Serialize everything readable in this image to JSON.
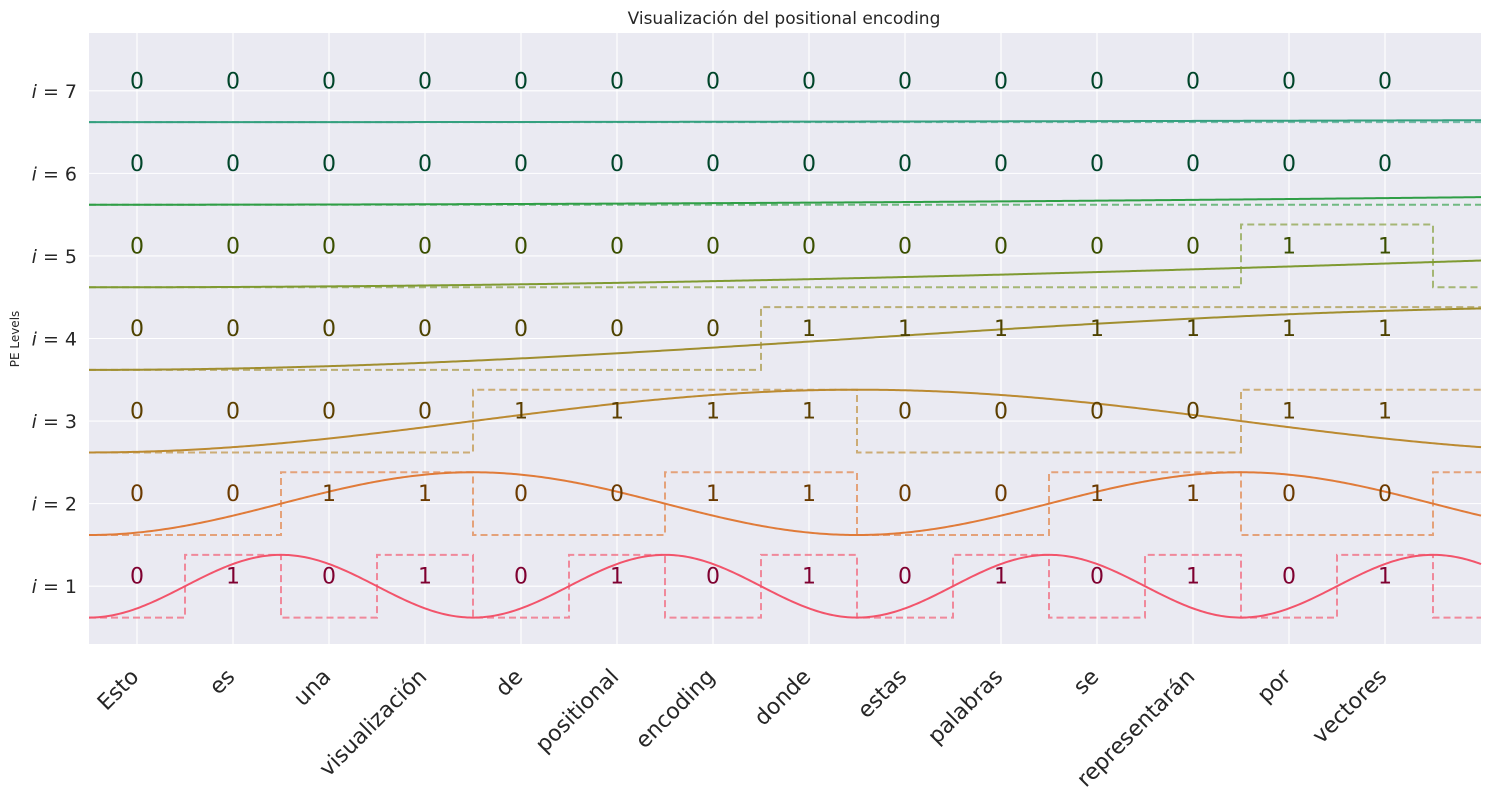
{
  "chart_data": {
    "type": "line",
    "title": "Visualización del positional encoding",
    "xlabel": "",
    "ylabel": "PE Levels",
    "ytick_prefix": "i = ",
    "levels": [
      1,
      2,
      3,
      4,
      5,
      6,
      7
    ],
    "tokens": [
      "Esto",
      "es",
      "una",
      "visualización",
      "de",
      "positional",
      "encoding",
      "donde",
      "estas",
      "palabras",
      "se",
      "representarán",
      "por",
      "vectores"
    ],
    "x_range": [
      -0.5,
      14.0
    ],
    "y_range": [
      0.3,
      7.7
    ],
    "grid": true,
    "series": [
      {
        "level": 1,
        "color": "#f2546b",
        "text_color": "#7f0030",
        "bits": [
          0,
          1,
          0,
          1,
          0,
          1,
          0,
          1,
          0,
          1,
          0,
          1,
          0,
          1
        ]
      },
      {
        "level": 2,
        "color": "#e07b39",
        "text_color": "#6b3a00",
        "bits": [
          0,
          0,
          1,
          1,
          0,
          0,
          1,
          1,
          0,
          0,
          1,
          1,
          0,
          0
        ]
      },
      {
        "level": 3,
        "color": "#bb8a31",
        "text_color": "#5c3f00",
        "bits": [
          0,
          0,
          0,
          0,
          1,
          1,
          1,
          1,
          0,
          0,
          0,
          0,
          1,
          1
        ]
      },
      {
        "level": 4,
        "color": "#a08e2f",
        "text_color": "#4d4200",
        "bits": [
          0,
          0,
          0,
          0,
          0,
          0,
          0,
          1,
          1,
          1,
          1,
          1,
          1,
          1
        ]
      },
      {
        "level": 5,
        "color": "#7f9a31",
        "text_color": "#3a4f00",
        "bits": [
          0,
          0,
          0,
          0,
          0,
          0,
          0,
          0,
          0,
          0,
          0,
          0,
          1,
          1
        ]
      },
      {
        "level": 6,
        "color": "#2f9e46",
        "text_color": "#00452a",
        "bits": [
          0,
          0,
          0,
          0,
          0,
          0,
          0,
          0,
          0,
          0,
          0,
          0,
          0,
          0
        ]
      },
      {
        "level": 7,
        "color": "#34a07f",
        "text_color": "#00452a",
        "bits": [
          0,
          0,
          0,
          0,
          0,
          0,
          0,
          0,
          0,
          0,
          0,
          0,
          0,
          0
        ]
      }
    ]
  }
}
